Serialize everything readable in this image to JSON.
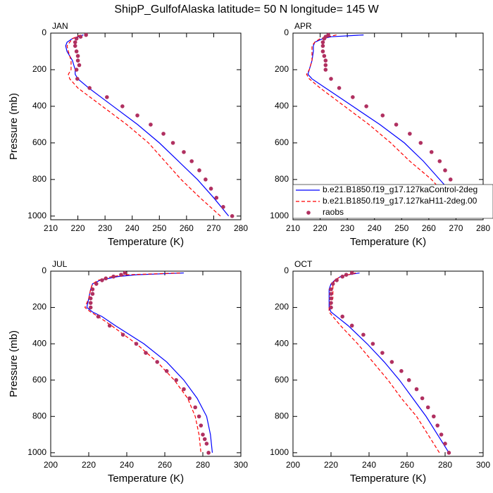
{
  "title": "ShipP_GulfofAlaska  latitude= 50 N longitude= 145 W",
  "chart_data": [
    {
      "type": "line",
      "title": "JAN",
      "xlabel": "Temperature (K)",
      "ylabel": "Pressure (mb)",
      "xlim": [
        210,
        280
      ],
      "xticks": [
        210,
        220,
        230,
        240,
        250,
        260,
        270,
        280
      ],
      "ylim": [
        0,
        1020
      ],
      "yticks": [
        0,
        200,
        400,
        600,
        800,
        1000
      ],
      "y_inverted": true,
      "series": [
        {
          "color": "#0000ff",
          "style": "solid",
          "x": [
            222,
            218,
            216,
            215.5,
            216,
            218,
            219,
            219,
            220,
            224,
            233,
            242,
            250,
            257,
            264,
            270,
            275.5
          ],
          "y": [
            10,
            30,
            50,
            70,
            100,
            150,
            200,
            225,
            250,
            300,
            400,
            500,
            600,
            700,
            800,
            900,
            1000
          ]
        },
        {
          "color": "#ff0000",
          "style": "dashed",
          "x": [
            221,
            218,
            217,
            216,
            216.5,
            217.5,
            217.5,
            216.5,
            217,
            220,
            229,
            238,
            246,
            252,
            258,
            265,
            272.5
          ],
          "y": [
            10,
            30,
            50,
            70,
            100,
            150,
            200,
            225,
            250,
            300,
            400,
            500,
            600,
            700,
            800,
            900,
            1000
          ]
        },
        {
          "color": "#b03060",
          "style": "markers",
          "x": [
            223,
            221,
            219.5,
            219,
            219,
            219.5,
            220,
            220,
            220.5,
            219.5,
            219.8,
            224.3,
            230.7,
            236.4,
            241.9,
            246.8,
            251.5,
            255,
            259,
            261.9,
            264.7,
            267,
            269,
            271,
            273.5,
            276.8
          ],
          "y": [
            10,
            20,
            30,
            50,
            70,
            100,
            125,
            150,
            175,
            200,
            250,
            300,
            350,
            400,
            450,
            500,
            550,
            600,
            650,
            700,
            750,
            800,
            850,
            900,
            950,
            1000
          ]
        }
      ]
    },
    {
      "type": "line",
      "title": "APR",
      "xlabel": "Temperature (K)",
      "xlim": [
        210,
        280
      ],
      "xticks": [
        210,
        220,
        230,
        240,
        250,
        260,
        270,
        280
      ],
      "ylim": [
        0,
        1020
      ],
      "yticks": [
        0,
        200,
        400,
        600,
        800,
        1000
      ],
      "y_inverted": true,
      "legend": "right",
      "series": [
        {
          "name": "b.e21.B1850.f19_g17.127kaControl-2deg",
          "color": "#0000ff",
          "style": "solid",
          "x": [
            236,
            224,
            221,
            218,
            217.5,
            217.5,
            217,
            216,
            215.5,
            217,
            222,
            232,
            242,
            251,
            258,
            264,
            270,
            277
          ],
          "y": [
            10,
            20,
            30,
            50,
            70,
            100,
            150,
            200,
            225,
            250,
            300,
            400,
            500,
            600,
            700,
            800,
            900,
            1000
          ]
        },
        {
          "name": "b.e21.B1850.f19_g17.127kaH11-2deg.00",
          "color": "#ff0000",
          "style": "dashed",
          "x": [
            226,
            220,
            218,
            217,
            217,
            217,
            216,
            215,
            216,
            220,
            229,
            238,
            246,
            253,
            261,
            267,
            272
          ],
          "y": [
            10,
            30,
            50,
            70,
            100,
            150,
            200,
            225,
            250,
            300,
            400,
            500,
            600,
            700,
            800,
            900,
            1000
          ]
        },
        {
          "name": "raobs",
          "color": "#b03060",
          "style": "markers",
          "x": [
            223,
            222,
            221.5,
            221,
            221,
            221,
            221.5,
            222,
            222,
            222,
            224,
            227,
            232,
            237,
            243,
            248,
            253,
            257,
            261,
            264,
            266,
            268,
            270,
            272,
            275,
            278
          ],
          "y": [
            10,
            20,
            30,
            50,
            70,
            100,
            125,
            150,
            175,
            200,
            250,
            300,
            350,
            400,
            450,
            500,
            550,
            600,
            650,
            700,
            750,
            800,
            850,
            900,
            950,
            1000
          ]
        }
      ]
    },
    {
      "type": "line",
      "title": "JUL",
      "xlabel": "Temperature (K)",
      "ylabel": "Pressure (mb)",
      "xlim": [
        200,
        300
      ],
      "xticks": [
        200,
        220,
        240,
        260,
        280,
        300
      ],
      "ylim": [
        0,
        1020
      ],
      "yticks": [
        0,
        200,
        400,
        600,
        800,
        1000
      ],
      "y_inverted": true,
      "series": [
        {
          "color": "#0000ff",
          "style": "solid",
          "x": [
            270,
            245,
            235,
            226,
            222,
            221,
            220,
            219,
            222,
            227,
            234,
            249,
            261,
            270,
            277,
            282,
            284,
            285
          ],
          "y": [
            10,
            20,
            30,
            50,
            70,
            100,
            150,
            200,
            225,
            250,
            300,
            400,
            500,
            600,
            700,
            800,
            900,
            1000
          ]
        },
        {
          "color": "#ff0000",
          "style": "dashed",
          "x": [
            268,
            240,
            232,
            225,
            222,
            221,
            220,
            218,
            221,
            225,
            232,
            245,
            256,
            265,
            272,
            276,
            278,
            279
          ],
          "y": [
            10,
            20,
            30,
            50,
            70,
            100,
            150,
            200,
            225,
            250,
            300,
            400,
            500,
            600,
            700,
            800,
            900,
            1000
          ]
        },
        {
          "color": "#b03060",
          "style": "markers",
          "x": [
            239,
            237,
            233,
            229,
            227,
            224,
            222,
            222,
            221,
            221,
            221,
            225,
            231,
            238,
            245,
            250,
            256,
            261,
            266,
            270,
            273,
            276,
            278,
            279,
            280,
            281,
            282,
            283
          ],
          "y": [
            10,
            20,
            30,
            40,
            50,
            70,
            100,
            125,
            150,
            175,
            200,
            250,
            300,
            350,
            400,
            450,
            500,
            550,
            600,
            650,
            700,
            750,
            800,
            850,
            900,
            925,
            950,
            1000
          ]
        }
      ]
    },
    {
      "type": "line",
      "title": "OCT",
      "xlabel": "Temperature (K)",
      "xlim": [
        200,
        300
      ],
      "xticks": [
        200,
        220,
        240,
        260,
        280,
        300
      ],
      "ylim": [
        0,
        1020
      ],
      "yticks": [
        0,
        200,
        400,
        600,
        800,
        1000
      ],
      "y_inverted": true,
      "series": [
        {
          "color": "#0000ff",
          "style": "solid",
          "x": [
            235,
            229,
            225,
            222,
            220,
            219,
            219,
            219,
            220,
            223,
            229,
            239,
            248,
            256,
            263,
            270,
            276,
            282
          ],
          "y": [
            10,
            20,
            30,
            50,
            70,
            100,
            150,
            200,
            225,
            250,
            300,
            400,
            500,
            600,
            700,
            800,
            900,
            1000
          ]
        },
        {
          "color": "#ff0000",
          "style": "dashed",
          "x": [
            233,
            225,
            222,
            221,
            221,
            221,
            219,
            219,
            221,
            225,
            234,
            242,
            250,
            257,
            265,
            271,
            277
          ],
          "y": [
            10,
            30,
            50,
            70,
            100,
            150,
            200,
            225,
            250,
            300,
            400,
            500,
            600,
            700,
            800,
            900,
            1000
          ]
        },
        {
          "color": "#b03060",
          "style": "markers",
          "x": [
            231,
            228,
            226,
            223,
            221,
            220,
            220,
            220,
            220,
            220,
            226,
            231,
            237,
            242,
            247,
            252,
            257,
            261,
            265,
            268,
            271,
            274,
            276,
            278,
            280,
            282
          ],
          "y": [
            10,
            20,
            30,
            50,
            70,
            100,
            125,
            150,
            175,
            200,
            250,
            300,
            350,
            400,
            450,
            500,
            550,
            600,
            650,
            700,
            750,
            800,
            850,
            900,
            950,
            1000
          ]
        }
      ]
    }
  ]
}
